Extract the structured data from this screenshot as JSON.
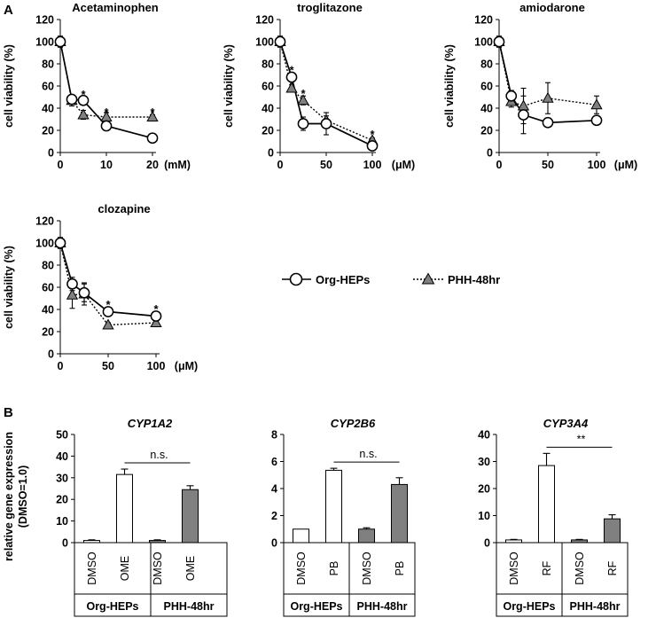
{
  "panel_labels": {
    "a": "A",
    "b": "B"
  },
  "legend": {
    "org": "Org-HEPs",
    "phh": "PHH-48hr"
  },
  "colors": {
    "org_fill": "#ffffff",
    "phh_fill": "#808080",
    "line": "#000000"
  },
  "chart_data": [
    {
      "id": "acetaminophen",
      "type": "line",
      "title": "Acetaminophen",
      "xlabel": "(mM)",
      "ylabel": "cell viability (%)",
      "xlim": [
        0,
        20
      ],
      "ylim": [
        0,
        120
      ],
      "xticks": [
        0,
        10,
        20
      ],
      "yticks": [
        0,
        20,
        40,
        60,
        80,
        100,
        120
      ],
      "series": [
        {
          "name": "Org-HEPs",
          "x": [
            0,
            2.5,
            5,
            10,
            20
          ],
          "y": [
            100,
            48,
            47,
            24,
            13
          ],
          "err": [
            5,
            3,
            2,
            2,
            1
          ]
        },
        {
          "name": "PHH-48hr",
          "x": [
            0,
            2.5,
            5,
            10,
            20
          ],
          "y": [
            100,
            47,
            34,
            32,
            32
          ],
          "err": [
            3,
            5,
            4,
            4,
            2
          ]
        }
      ],
      "annotations": [
        {
          "x": 5,
          "y": 52,
          "text": "*"
        },
        {
          "x": 10,
          "y": 36,
          "text": "*"
        },
        {
          "x": 20,
          "y": 36,
          "text": "*"
        }
      ]
    },
    {
      "id": "troglitazone",
      "type": "line",
      "title": "troglitazone",
      "xlabel": "(μM)",
      "ylabel": "cell viability (%)",
      "xlim": [
        0,
        100
      ],
      "ylim": [
        0,
        120
      ],
      "xticks": [
        0,
        50,
        100
      ],
      "yticks": [
        0,
        20,
        40,
        60,
        80,
        100,
        120
      ],
      "series": [
        {
          "name": "Org-HEPs",
          "x": [
            0,
            12.5,
            25,
            50,
            100
          ],
          "y": [
            100,
            68,
            26,
            26,
            6
          ],
          "err": [
            5,
            4,
            6,
            10,
            2
          ]
        },
        {
          "name": "PHH-48hr",
          "x": [
            0,
            12.5,
            25,
            50,
            100
          ],
          "y": [
            100,
            58,
            47,
            29,
            11
          ],
          "err": [
            3,
            3,
            4,
            4,
            2
          ]
        }
      ],
      "annotations": [
        {
          "x": 12.5,
          "y": 74,
          "text": "*"
        },
        {
          "x": 25,
          "y": 53,
          "text": "*"
        },
        {
          "x": 100,
          "y": 16,
          "text": "*"
        }
      ]
    },
    {
      "id": "amiodarone",
      "type": "line",
      "title": "amiodarone",
      "xlabel": "(μM)",
      "ylabel": "cell viability (%)",
      "xlim": [
        0,
        100
      ],
      "ylim": [
        0,
        120
      ],
      "xticks": [
        0,
        50,
        100
      ],
      "yticks": [
        0,
        20,
        40,
        60,
        80,
        100,
        120
      ],
      "series": [
        {
          "name": "Org-HEPs",
          "x": [
            0,
            12.5,
            25,
            50,
            100
          ],
          "y": [
            100,
            51,
            34,
            27,
            29
          ],
          "err": [
            5,
            5,
            17,
            2,
            2
          ]
        },
        {
          "name": "PHH-48hr",
          "x": [
            0,
            12.5,
            25,
            50,
            100
          ],
          "y": [
            100,
            46,
            42,
            49,
            43
          ],
          "err": [
            3,
            5,
            16,
            14,
            8
          ]
        }
      ],
      "annotations": []
    },
    {
      "id": "clozapine",
      "type": "line",
      "title": "clozapine",
      "xlabel": "(μM)",
      "ylabel": "cell viability (%)",
      "xlim": [
        0,
        100
      ],
      "ylim": [
        0,
        120
      ],
      "xticks": [
        0,
        50,
        100
      ],
      "yticks": [
        0,
        20,
        40,
        60,
        80,
        100,
        120
      ],
      "series": [
        {
          "name": "Org-HEPs",
          "x": [
            0,
            12.5,
            25,
            50,
            100
          ],
          "y": [
            100,
            63,
            55,
            38,
            34
          ],
          "err": [
            5,
            6,
            8,
            2,
            2
          ]
        },
        {
          "name": "PHH-48hr",
          "x": [
            0,
            12.5,
            25,
            50,
            100
          ],
          "y": [
            100,
            53,
            54,
            26,
            28
          ],
          "err": [
            3,
            12,
            10,
            2,
            2
          ]
        }
      ],
      "annotations": [
        {
          "x": 50,
          "y": 44,
          "text": "*"
        },
        {
          "x": 100,
          "y": 40,
          "text": "*"
        }
      ]
    },
    {
      "id": "cyp1a2",
      "type": "bar",
      "title": "CYP1A2",
      "ylabel": "relative gene expression (DMSO=1.0)",
      "ylim": [
        0,
        50
      ],
      "yticks": [
        0,
        10,
        20,
        30,
        40,
        50
      ],
      "categories": [
        "DMSO",
        "OME",
        "DMSO",
        "OME"
      ],
      "groups": [
        "Org-HEPs",
        "PHH-48hr"
      ],
      "values": [
        1,
        31.5,
        1,
        24.5
      ],
      "err": [
        0.3,
        2.5,
        0.3,
        1.8
      ],
      "fills": [
        "white",
        "white",
        "gray",
        "gray"
      ],
      "significance": {
        "from": 1,
        "to": 3,
        "text": "n.s."
      }
    },
    {
      "id": "cyp2b6",
      "type": "bar",
      "title": "CYP2B6",
      "ylabel": "relative gene expression (DMSO=1.0)",
      "ylim": [
        0,
        8
      ],
      "yticks": [
        0,
        2,
        4,
        6,
        8
      ],
      "categories": [
        "DMSO",
        "PB",
        "DMSO",
        "PB"
      ],
      "groups": [
        "Org-HEPs",
        "PHH-48hr"
      ],
      "values": [
        1,
        5.35,
        1,
        4.3
      ],
      "err": [
        0,
        0.15,
        0.1,
        0.5
      ],
      "fills": [
        "white",
        "white",
        "gray",
        "gray"
      ],
      "significance": {
        "from": 1,
        "to": 3,
        "text": "n.s."
      }
    },
    {
      "id": "cyp3a4",
      "type": "bar",
      "title": "CYP3A4",
      "ylabel": "relative gene expression (DMSO=1.0)",
      "ylim": [
        0,
        40
      ],
      "yticks": [
        0,
        10,
        20,
        30,
        40
      ],
      "categories": [
        "DMSO",
        "RF",
        "DMSO",
        "RF"
      ],
      "groups": [
        "Org-HEPs",
        "PHH-48hr"
      ],
      "values": [
        1,
        28.5,
        1,
        8.8
      ],
      "err": [
        0.2,
        4.5,
        0.2,
        1.5
      ],
      "fills": [
        "white",
        "white",
        "gray",
        "gray"
      ],
      "significance": {
        "from": 1,
        "to": 3,
        "text": "**"
      }
    }
  ]
}
